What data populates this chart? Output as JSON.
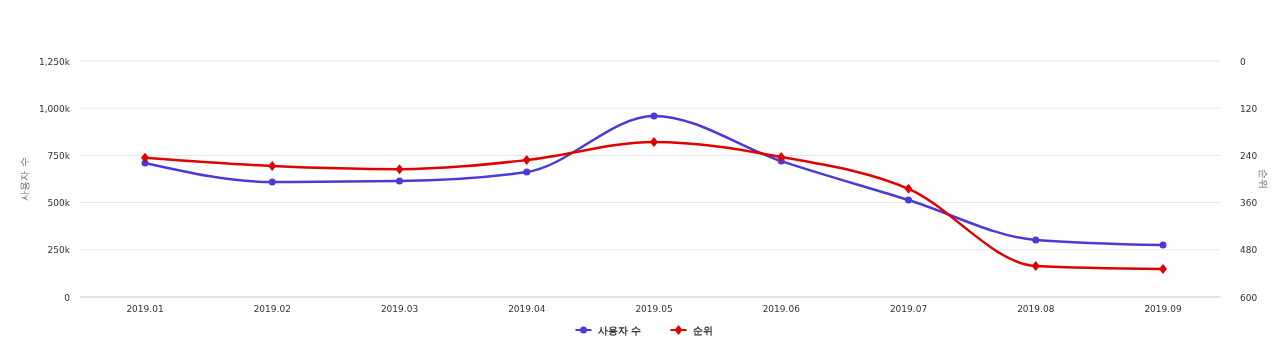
{
  "chart_data": {
    "type": "line",
    "ylabel": "사용자 수",
    "y2label": "순위",
    "categories": [
      "2019.01",
      "2019.02",
      "2019.03",
      "2019.04",
      "2019.05",
      "2019.06",
      "2019.07",
      "2019.08",
      "2019.09"
    ],
    "series": [
      {
        "name": "사용자 수",
        "color": "#4b3bd6",
        "marker": "circle",
        "values": [
          710000,
          609000,
          614000,
          662000,
          959000,
          720000,
          514000,
          302000,
          275000
        ]
      },
      {
        "name": "순위",
        "color": "#e00000",
        "marker": "diamond",
        "axis": "y2",
        "values": [
          246,
          267,
          275,
          252,
          206,
          244,
          325,
          521,
          529
        ]
      }
    ],
    "ylim": [
      0,
      1250000
    ],
    "yticks": [
      {
        "value": 0,
        "label": "0"
      },
      {
        "value": 250000,
        "label": "250k"
      },
      {
        "value": 500000,
        "label": "500k"
      },
      {
        "value": 750000,
        "label": "750k"
      },
      {
        "value": 1000000,
        "label": "1,000k"
      },
      {
        "value": 1250000,
        "label": "1,250k"
      }
    ],
    "y2lim": [
      600,
      0
    ],
    "y2ticks": [
      0,
      120,
      240,
      360,
      480,
      600
    ],
    "grid": "y",
    "legend": "bottom"
  }
}
